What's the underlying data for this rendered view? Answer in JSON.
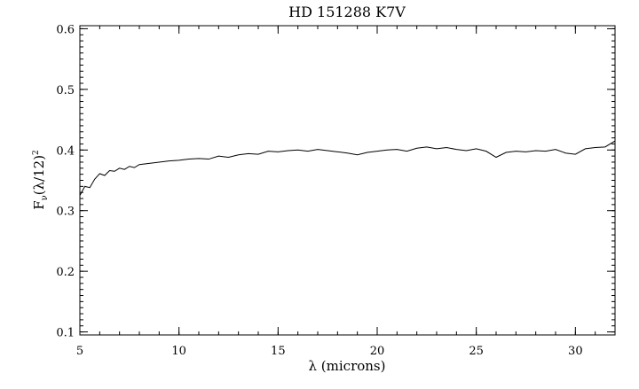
{
  "chart_data": {
    "type": "line",
    "title": "HD 151288 K7V",
    "xlabel": "λ (microns)",
    "ylabel": {
      "base": "F",
      "sub": "ν",
      "paren": "(λ/12)",
      "sup": "2"
    },
    "xlim": [
      5,
      32
    ],
    "ylim": [
      0.095,
      0.605
    ],
    "x_ticks": [
      {
        "value": 5,
        "label": "5"
      },
      {
        "value": 10,
        "label": "10"
      },
      {
        "value": 15,
        "label": "15"
      },
      {
        "value": 20,
        "label": "20"
      },
      {
        "value": 25,
        "label": "25"
      },
      {
        "value": 30,
        "label": "30"
      }
    ],
    "y_ticks": [
      {
        "value": 0.1,
        "label": "0.1"
      },
      {
        "value": 0.2,
        "label": "0.2"
      },
      {
        "value": 0.3,
        "label": "0.3"
      },
      {
        "value": 0.4,
        "label": "0.4"
      },
      {
        "value": 0.5,
        "label": "0.5"
      },
      {
        "value": 0.6,
        "label": "0.6"
      }
    ],
    "x_minor_step": 1,
    "y_minor_step": 0.01,
    "grid": false,
    "series": [
      {
        "color": "#000000",
        "x": [
          5.0,
          5.25,
          5.5,
          5.75,
          6.0,
          6.25,
          6.5,
          6.75,
          7.0,
          7.25,
          7.5,
          7.75,
          8.0,
          8.5,
          9.0,
          9.5,
          10.0,
          10.5,
          11.0,
          11.5,
          12.0,
          12.5,
          13.0,
          13.5,
          14.0,
          14.5,
          15.0,
          15.5,
          16.0,
          16.5,
          17.0,
          17.5,
          18.0,
          18.5,
          19.0,
          19.5,
          20.0,
          20.5,
          21.0,
          21.5,
          22.0,
          22.5,
          23.0,
          23.5,
          24.0,
          24.5,
          25.0,
          25.5,
          26.0,
          26.5,
          27.0,
          27.5,
          28.0,
          28.5,
          29.0,
          29.5,
          30.0,
          30.5,
          31.0,
          31.5,
          32.0
        ],
        "y": [
          0.325,
          0.34,
          0.338,
          0.352,
          0.361,
          0.358,
          0.366,
          0.365,
          0.37,
          0.368,
          0.373,
          0.371,
          0.376,
          0.378,
          0.38,
          0.382,
          0.383,
          0.385,
          0.386,
          0.385,
          0.39,
          0.388,
          0.392,
          0.394,
          0.393,
          0.398,
          0.397,
          0.399,
          0.4,
          0.398,
          0.401,
          0.399,
          0.397,
          0.395,
          0.392,
          0.396,
          0.398,
          0.4,
          0.401,
          0.398,
          0.403,
          0.405,
          0.402,
          0.404,
          0.401,
          0.399,
          0.402,
          0.398,
          0.388,
          0.396,
          0.398,
          0.397,
          0.399,
          0.398,
          0.401,
          0.395,
          0.393,
          0.402,
          0.404,
          0.405,
          0.415
        ]
      }
    ]
  }
}
